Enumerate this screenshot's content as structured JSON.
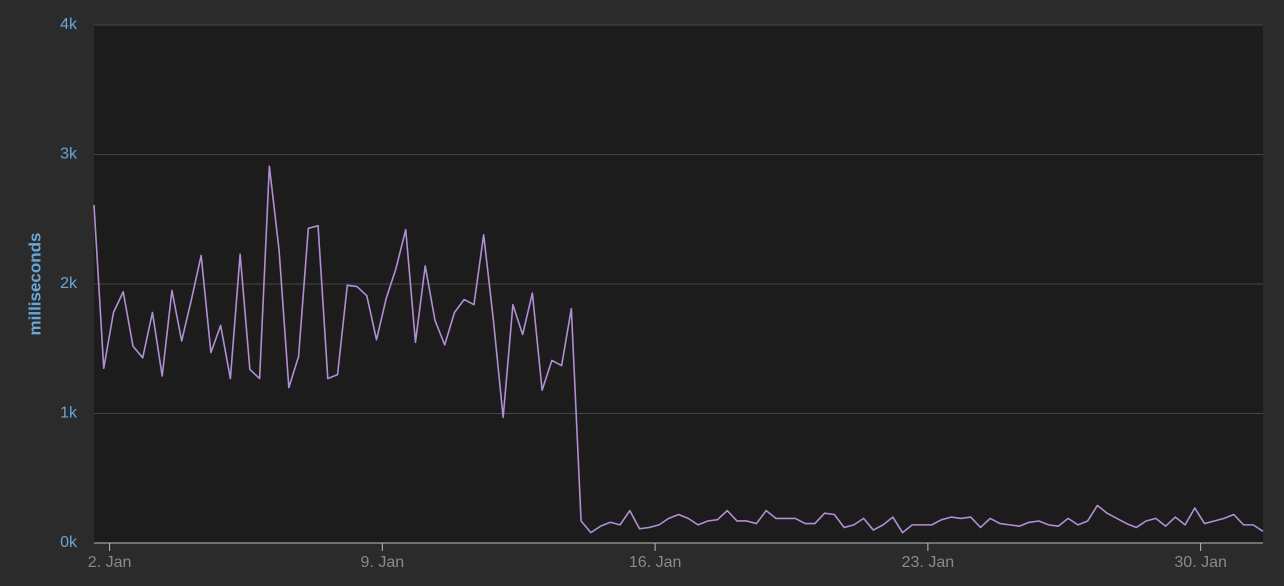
{
  "chart_data": {
    "type": "line",
    "y_label": "milliseconds",
    "x": [
      1.6,
      1.85,
      2.1,
      2.35,
      2.6,
      2.85,
      3.1,
      3.35,
      3.6,
      3.85,
      4.1,
      4.35,
      4.6,
      4.85,
      5.1,
      5.35,
      5.6,
      5.85,
      6.1,
      6.35,
      6.6,
      6.85,
      7.1,
      7.35,
      7.6,
      7.85,
      8.1,
      8.35,
      8.6,
      8.85,
      9.1,
      9.35,
      9.6,
      9.85,
      10.1,
      10.35,
      10.6,
      10.85,
      11.1,
      11.35,
      11.6,
      11.85,
      12.1,
      12.35,
      12.6,
      12.85,
      13.1,
      13.35,
      13.6,
      13.85,
      14.1,
      14.35,
      14.6,
      14.85,
      15.1,
      15.35,
      15.6,
      15.85,
      16.1,
      16.35,
      16.6,
      16.85,
      17.1,
      17.35,
      17.6,
      17.85,
      18.1,
      18.35,
      18.6,
      18.85,
      19.1,
      19.35,
      19.6,
      19.85,
      20.1,
      20.35,
      20.6,
      20.85,
      21.1,
      21.35,
      21.6,
      21.85,
      22.1,
      22.35,
      22.6,
      22.85,
      23.1,
      23.35,
      23.6,
      23.85,
      24.1,
      24.35,
      24.6,
      24.85,
      25.1,
      25.35,
      25.6,
      25.85,
      26.1,
      26.35,
      26.6,
      26.85,
      27.1,
      27.35,
      27.6,
      27.85,
      28.1,
      28.35,
      28.6,
      28.85,
      29.1,
      29.35,
      29.6,
      29.85,
      30.1,
      30.35,
      30.6,
      30.85,
      31.1,
      31.35,
      31.6
    ],
    "series": [
      {
        "color": "#b08fd4",
        "values": [
          2610,
          1350,
          1780,
          1940,
          1520,
          1430,
          1780,
          1290,
          1950,
          1560,
          1880,
          2220,
          1470,
          1680,
          1270,
          2230,
          1340,
          1270,
          2910,
          2260,
          1200,
          1440,
          2430,
          2450,
          1270,
          1300,
          1990,
          1980,
          1910,
          1570,
          1890,
          2120,
          2420,
          1550,
          2140,
          1720,
          1530,
          1780,
          1880,
          1840,
          2380,
          1720,
          970,
          1840,
          1610,
          1930,
          1180,
          1410,
          1370,
          1810,
          170,
          80,
          130,
          160,
          140,
          250,
          110,
          120,
          140,
          190,
          220,
          190,
          140,
          170,
          180,
          250,
          170,
          170,
          150,
          250,
          190,
          190,
          190,
          150,
          150,
          230,
          220,
          120,
          140,
          190,
          100,
          140,
          200,
          80,
          140,
          140,
          140,
          180,
          200,
          190,
          200,
          120,
          190,
          150,
          140,
          130,
          160,
          170,
          140,
          130,
          190,
          140,
          170,
          290,
          230,
          190,
          150,
          120,
          170,
          190,
          130,
          200,
          140,
          270,
          150,
          170,
          190,
          220,
          140,
          140,
          90
        ]
      }
    ],
    "xlim": [
      1.6,
      31.6
    ],
    "xticks": [
      {
        "value": 2,
        "label": "2. Jan"
      },
      {
        "value": 9,
        "label": "9. Jan"
      },
      {
        "value": 16,
        "label": "16. Jan"
      },
      {
        "value": 23,
        "label": "23. Jan"
      },
      {
        "value": 30,
        "label": "30. Jan"
      }
    ],
    "ylim": [
      0,
      4000
    ],
    "yticks": [
      {
        "value": 0,
        "label": "0k"
      },
      {
        "value": 1000,
        "label": "1k"
      },
      {
        "value": 2000,
        "label": "2k"
      },
      {
        "value": 3000,
        "label": "3k"
      },
      {
        "value": 4000,
        "label": "4k"
      }
    ],
    "grid": true
  }
}
